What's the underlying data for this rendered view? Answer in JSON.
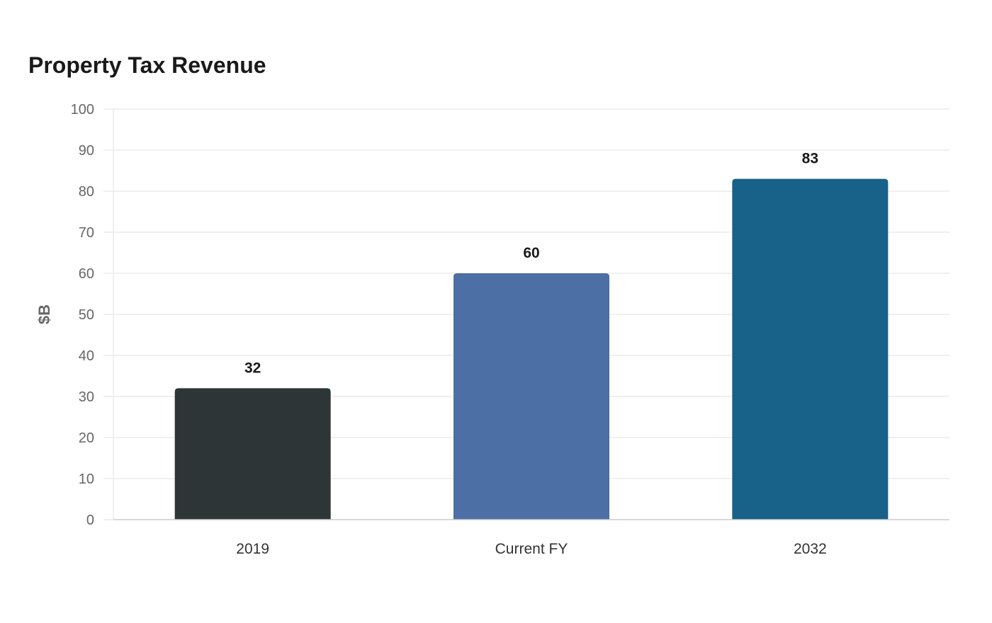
{
  "chart_data": {
    "type": "bar",
    "title": "Property Tax Revenue",
    "xlabel": "",
    "ylabel": "$B",
    "categories": [
      "2019",
      "Current FY",
      "2032"
    ],
    "values": [
      32,
      60,
      83
    ],
    "colors": [
      "#2e3536",
      "#4c6fa5",
      "#186188"
    ],
    "ylim": [
      0,
      100
    ],
    "yticks": [
      0,
      10,
      20,
      30,
      40,
      50,
      60,
      70,
      80,
      90,
      100
    ],
    "grid": true,
    "legend": "none"
  }
}
